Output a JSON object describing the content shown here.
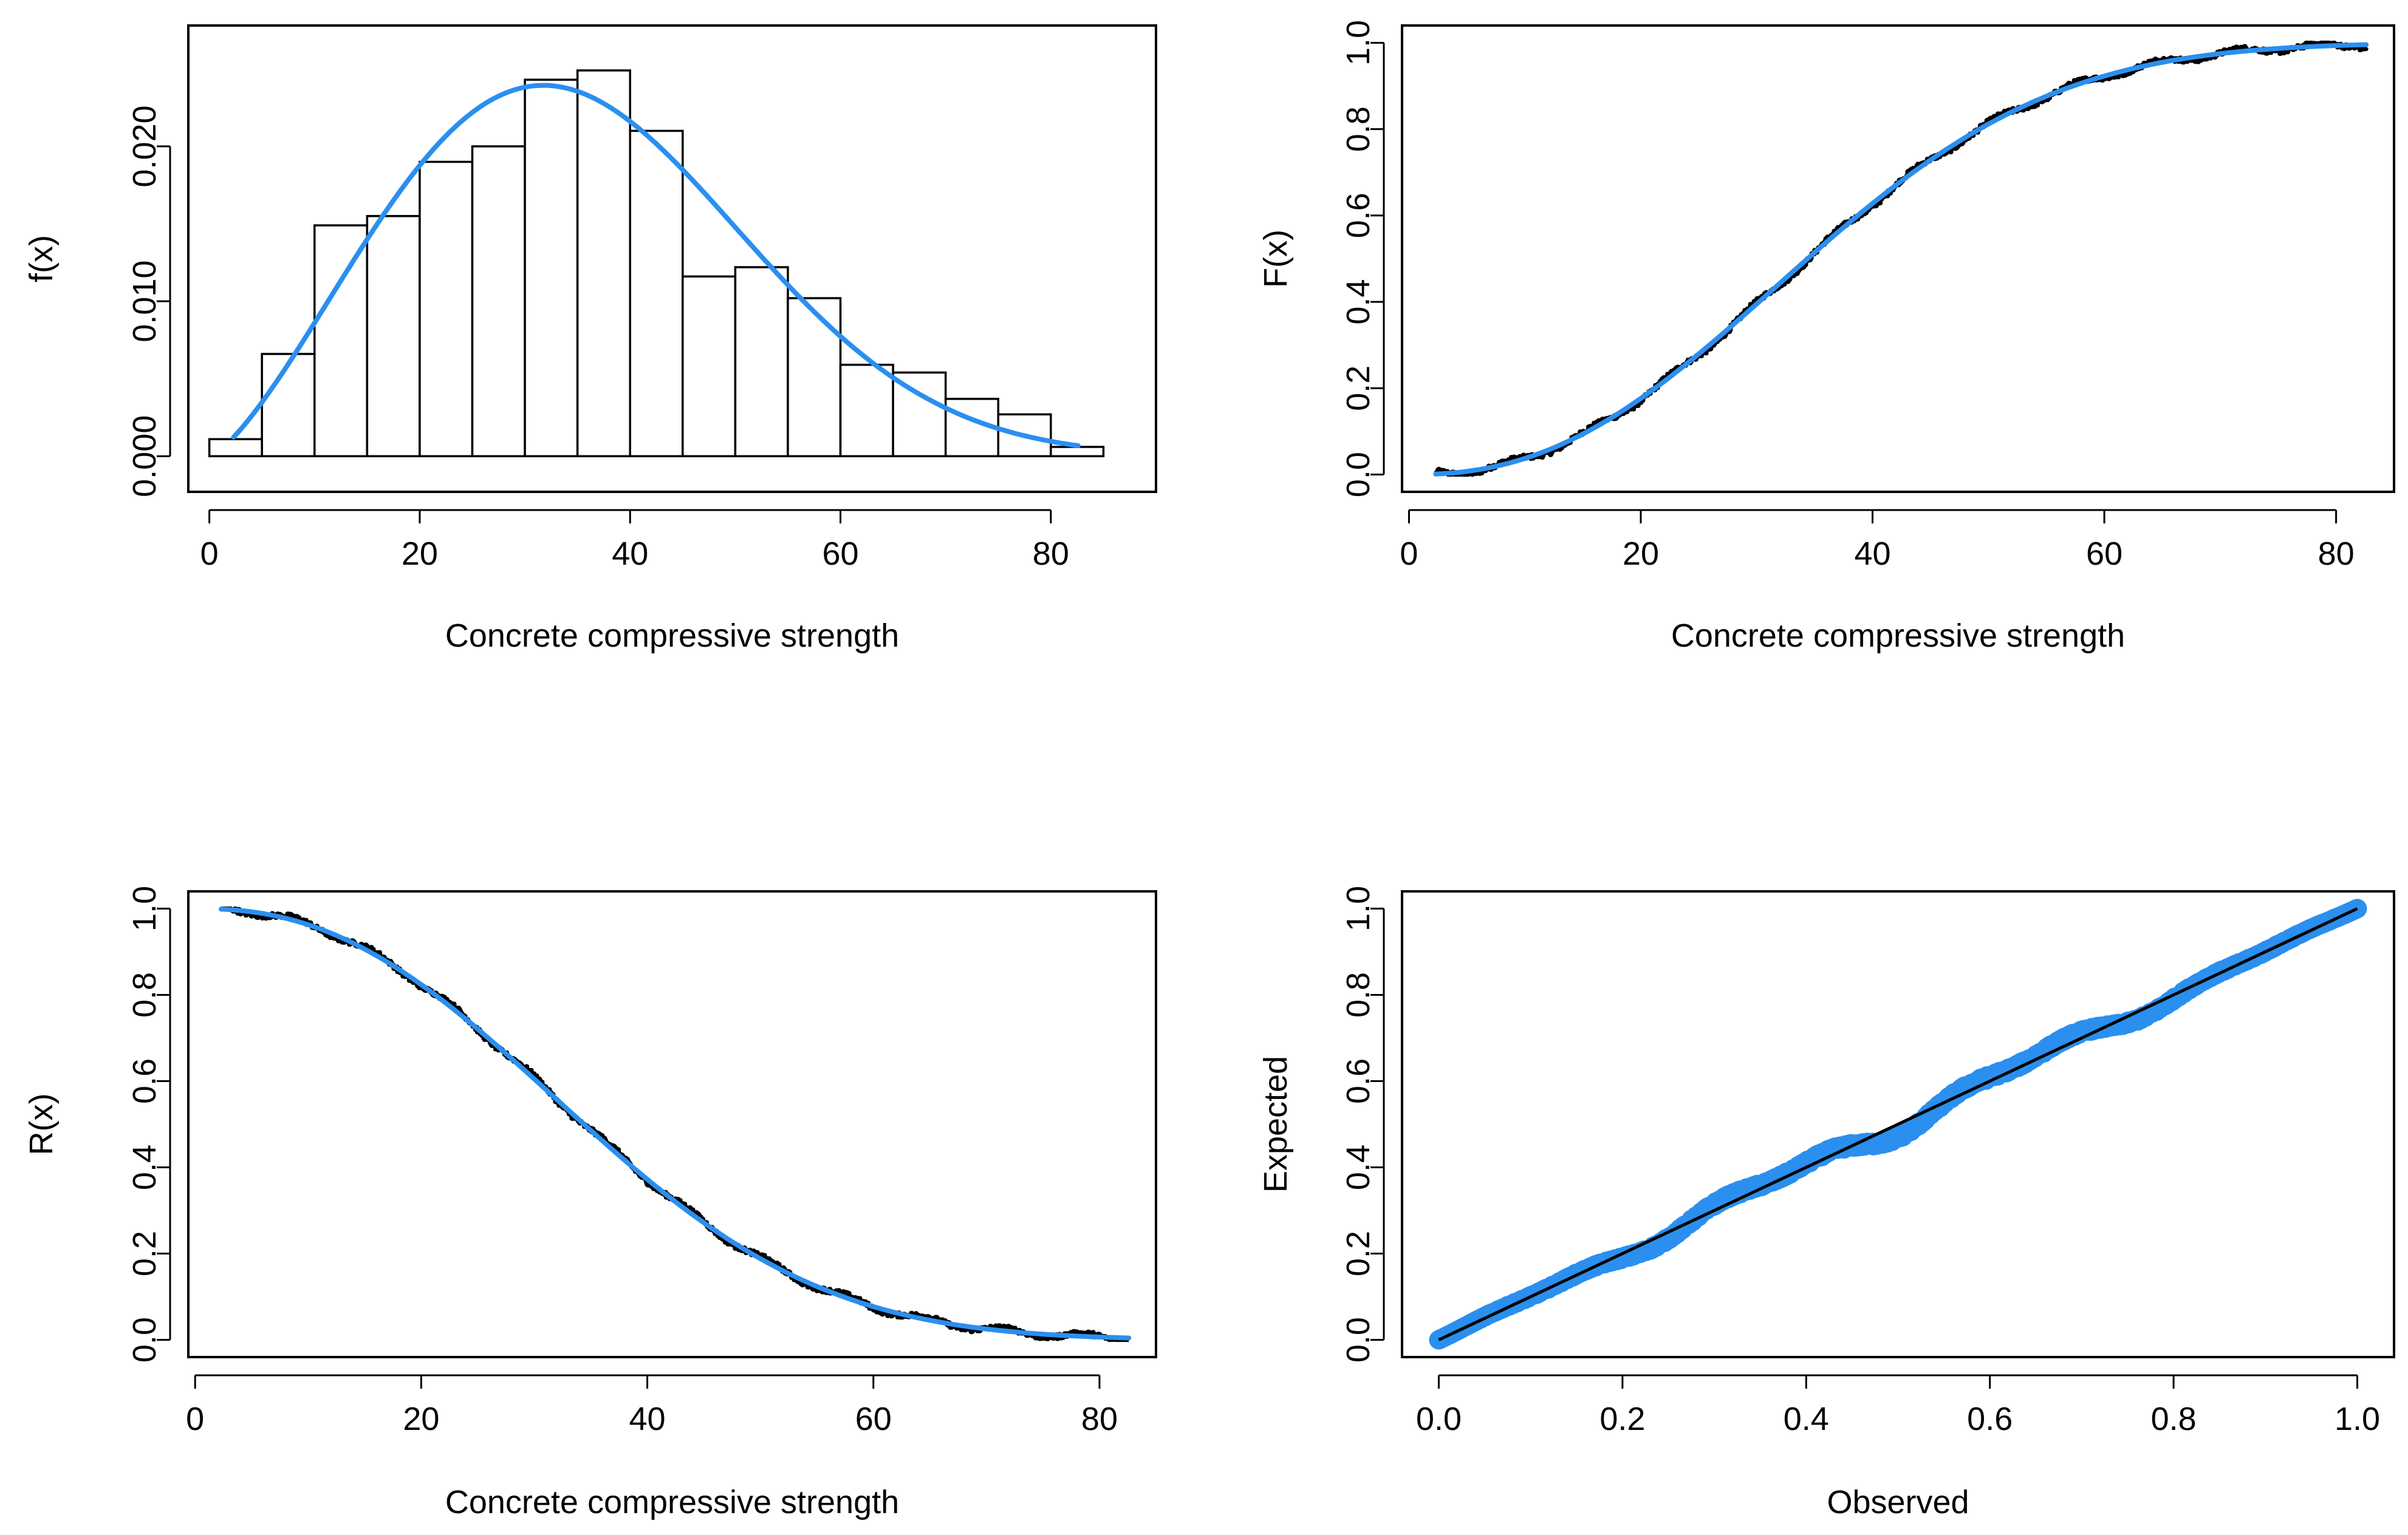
{
  "colors": {
    "fit": "#2B8FEF",
    "data": "#000000",
    "frame": "#000000",
    "bar_fill": "#ffffff"
  },
  "chart_data": [
    {
      "id": "pdf",
      "type": "bar",
      "subtype": "histogram-with-density",
      "title": "",
      "xlabel": "Concrete compressive strength",
      "ylabel": "f(x)",
      "xlim": [
        -2,
        90
      ],
      "ylim": [
        -0.0023,
        0.0278
      ],
      "xticks": [
        0,
        20,
        40,
        60,
        80
      ],
      "xtick_labels": [
        "0",
        "20",
        "40",
        "60",
        "80"
      ],
      "yticks": [
        0.0,
        0.01,
        0.02
      ],
      "ytick_labels": [
        "0.000",
        "0.010",
        "0.020"
      ],
      "bin_width": 5,
      "bins": [
        0,
        5,
        10,
        15,
        20,
        25,
        30,
        35,
        40,
        45,
        50,
        55,
        60,
        65,
        70,
        75,
        80
      ],
      "values": [
        0.0011,
        0.0066,
        0.0149,
        0.0155,
        0.019,
        0.02,
        0.0243,
        0.0249,
        0.021,
        0.0116,
        0.0122,
        0.0102,
        0.0059,
        0.0054,
        0.0037,
        0.0027,
        0.0006
      ],
      "fit_curve": {
        "type": "weibull-pdf",
        "shape": 2.35,
        "scale": 40.2,
        "x_range": [
          2.3,
          82.6
        ]
      }
    },
    {
      "id": "cdf",
      "type": "line",
      "title": "",
      "xlabel": "Concrete compressive strength",
      "ylabel": "F(x)",
      "xlim": [
        -0.6,
        85
      ],
      "ylim": [
        -0.04,
        1.04
      ],
      "xticks": [
        0,
        20,
        40,
        60,
        80
      ],
      "xtick_labels": [
        "0",
        "20",
        "40",
        "60",
        "80"
      ],
      "yticks": [
        0.0,
        0.2,
        0.4,
        0.6,
        0.8,
        1.0
      ],
      "ytick_labels": [
        "0.0",
        "0.2",
        "0.4",
        "0.6",
        "0.8",
        "1.0"
      ],
      "series": [
        {
          "name": "Empirical CDF",
          "kind": "empirical",
          "x_range": [
            2.3,
            82.6
          ]
        },
        {
          "name": "Fitted CDF",
          "kind": "weibull-cdf",
          "shape": 2.35,
          "scale": 40.2,
          "x_range": [
            2.3,
            82.6
          ]
        }
      ]
    },
    {
      "id": "reliability",
      "type": "line",
      "title": "",
      "xlabel": "Concrete compressive strength",
      "ylabel": "R(x)",
      "xlim": [
        -0.6,
        85
      ],
      "ylim": [
        -0.04,
        1.04
      ],
      "xticks": [
        0,
        20,
        40,
        60,
        80
      ],
      "xtick_labels": [
        "0",
        "20",
        "40",
        "60",
        "80"
      ],
      "yticks": [
        0.0,
        0.2,
        0.4,
        0.6,
        0.8,
        1.0
      ],
      "ytick_labels": [
        "0.0",
        "0.2",
        "0.4",
        "0.6",
        "0.8",
        "1.0"
      ],
      "series": [
        {
          "name": "Empirical survival",
          "kind": "empirical",
          "x_range": [
            2.3,
            82.6
          ]
        },
        {
          "name": "Fitted survival",
          "kind": "weibull-survival",
          "shape": 2.35,
          "scale": 40.2,
          "x_range": [
            2.3,
            82.6
          ]
        }
      ]
    },
    {
      "id": "pp",
      "type": "scatter",
      "subtype": "pp-plot",
      "title": "",
      "xlabel": "Observed",
      "ylabel": "Expected",
      "xlim": [
        -0.04,
        1.04
      ],
      "ylim": [
        -0.04,
        1.04
      ],
      "xticks": [
        0.0,
        0.2,
        0.4,
        0.6,
        0.8,
        1.0
      ],
      "xtick_labels": [
        "0.0",
        "0.2",
        "0.4",
        "0.6",
        "0.8",
        "1.0"
      ],
      "yticks": [
        0.0,
        0.2,
        0.4,
        0.6,
        0.8,
        1.0
      ],
      "ytick_labels": [
        "0.0",
        "0.2",
        "0.4",
        "0.6",
        "0.8",
        "1.0"
      ],
      "series": [
        {
          "name": "P-P points",
          "kind": "points",
          "x_range": [
            0,
            1
          ]
        },
        {
          "name": "Reference line",
          "kind": "line",
          "x": [
            0,
            1
          ],
          "y": [
            0,
            1
          ]
        }
      ]
    }
  ]
}
